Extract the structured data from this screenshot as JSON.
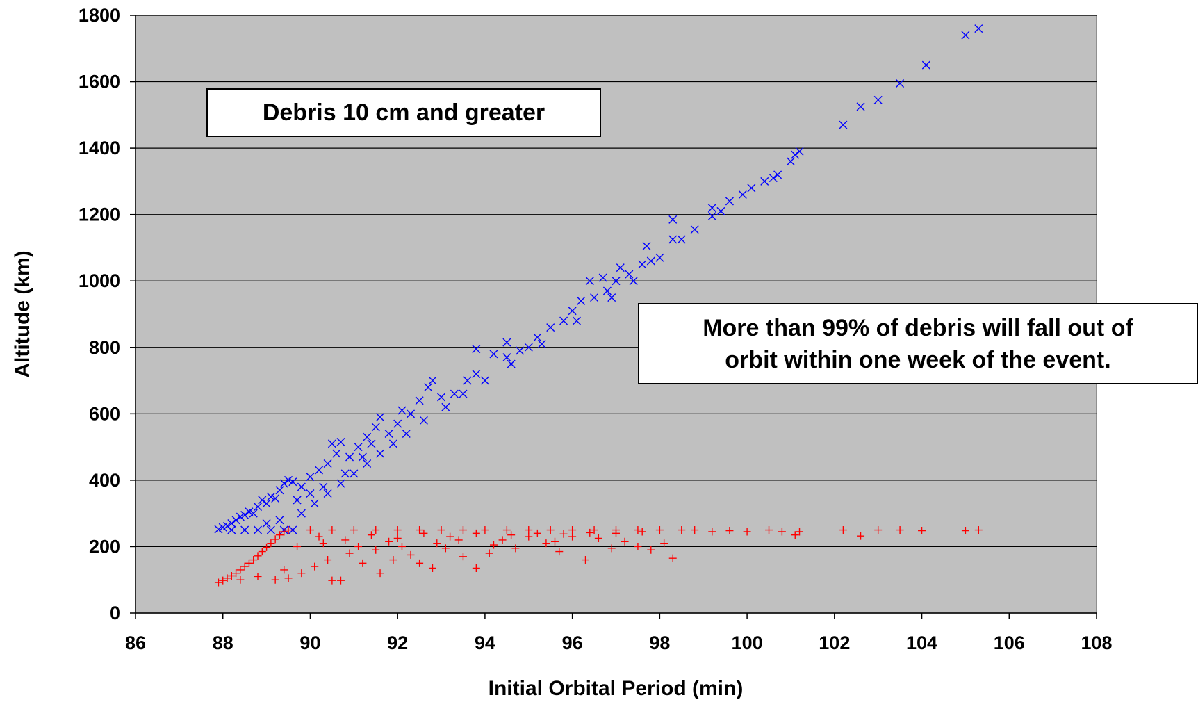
{
  "chart_data": {
    "type": "scatter",
    "xlabel": "Initial Orbital Period  (min)",
    "ylabel": "Altitude  (km)",
    "xlim": [
      86,
      108
    ],
    "ylim": [
      0,
      1800
    ],
    "x_ticks": [
      "86",
      "88",
      "90",
      "92",
      "94",
      "96",
      "98",
      "100",
      "102",
      "104",
      "106",
      "108"
    ],
    "y_ticks": [
      "0",
      "200",
      "400",
      "600",
      "800",
      "1000",
      "1200",
      "1400",
      "1600",
      "1800"
    ],
    "grid": "horizontal",
    "plot_background": "#c0c0c0",
    "annotations": [
      "Debris 10 cm and greater",
      "More than 99% of debris will fall out of orbit within one week of the event."
    ],
    "series": [
      {
        "marker": "x",
        "color": "#0000ff",
        "points": [
          [
            87.9,
            252
          ],
          [
            88.0,
            258
          ],
          [
            88.1,
            262
          ],
          [
            88.2,
            270
          ],
          [
            88.3,
            280
          ],
          [
            88.4,
            290
          ],
          [
            88.5,
            295
          ],
          [
            88.6,
            305
          ],
          [
            88.7,
            300
          ],
          [
            88.8,
            320
          ],
          [
            88.9,
            340
          ],
          [
            89.0,
            330
          ],
          [
            89.1,
            350
          ],
          [
            89.2,
            345
          ],
          [
            89.3,
            370
          ],
          [
            89.4,
            390
          ],
          [
            89.5,
            400
          ],
          [
            89.6,
            395
          ],
          [
            89.8,
            380
          ],
          [
            90.0,
            410
          ],
          [
            90.2,
            430
          ],
          [
            90.4,
            450
          ],
          [
            90.6,
            480
          ],
          [
            90.5,
            510
          ],
          [
            90.7,
            515
          ],
          [
            90.9,
            470
          ],
          [
            91.1,
            500
          ],
          [
            91.3,
            530
          ],
          [
            91.5,
            560
          ],
          [
            91.6,
            590
          ],
          [
            91.8,
            540
          ],
          [
            92.0,
            570
          ],
          [
            92.1,
            610
          ],
          [
            92.3,
            600
          ],
          [
            92.5,
            640
          ],
          [
            92.7,
            680
          ],
          [
            92.8,
            700
          ],
          [
            93.0,
            650
          ],
          [
            93.3,
            660
          ],
          [
            93.6,
            700
          ],
          [
            93.8,
            720
          ],
          [
            93.8,
            795
          ],
          [
            94.2,
            780
          ],
          [
            94.5,
            770
          ],
          [
            94.5,
            815
          ],
          [
            94.8,
            790
          ],
          [
            95.0,
            800
          ],
          [
            95.2,
            830
          ],
          [
            95.5,
            860
          ],
          [
            95.8,
            880
          ],
          [
            96.0,
            910
          ],
          [
            96.2,
            940
          ],
          [
            96.5,
            950
          ],
          [
            96.4,
            1000
          ],
          [
            96.8,
            970
          ],
          [
            96.7,
            1010
          ],
          [
            97.0,
            1000
          ],
          [
            97.1,
            1040
          ],
          [
            97.3,
            1020
          ],
          [
            97.6,
            1050
          ],
          [
            97.7,
            1105
          ],
          [
            97.8,
            1060
          ],
          [
            98.0,
            1070
          ],
          [
            98.3,
            1125
          ],
          [
            98.3,
            1185
          ],
          [
            98.5,
            1125
          ],
          [
            98.8,
            1155
          ],
          [
            99.2,
            1195
          ],
          [
            99.2,
            1220
          ],
          [
            99.4,
            1210
          ],
          [
            99.6,
            1240
          ],
          [
            99.9,
            1260
          ],
          [
            100.1,
            1280
          ],
          [
            100.4,
            1300
          ],
          [
            100.6,
            1310
          ],
          [
            100.7,
            1320
          ],
          [
            101.0,
            1360
          ],
          [
            101.1,
            1380
          ],
          [
            101.2,
            1390
          ],
          [
            102.2,
            1470
          ],
          [
            102.6,
            1525
          ],
          [
            103.0,
            1545
          ],
          [
            103.5,
            1595
          ],
          [
            104.1,
            1650
          ],
          [
            105.0,
            1740
          ],
          [
            105.3,
            1760
          ],
          [
            88.2,
            250
          ],
          [
            88.5,
            250
          ],
          [
            88.8,
            250
          ],
          [
            89.1,
            250
          ],
          [
            89.4,
            250
          ],
          [
            89.6,
            250
          ],
          [
            89.0,
            270
          ],
          [
            89.3,
            280
          ],
          [
            89.8,
            300
          ],
          [
            90.1,
            330
          ],
          [
            90.4,
            360
          ],
          [
            90.7,
            390
          ],
          [
            91.0,
            420
          ],
          [
            91.3,
            450
          ],
          [
            91.6,
            480
          ],
          [
            91.9,
            510
          ],
          [
            92.2,
            540
          ],
          [
            92.6,
            580
          ],
          [
            93.1,
            620
          ],
          [
            93.5,
            660
          ],
          [
            94.0,
            700
          ],
          [
            94.6,
            750
          ],
          [
            95.3,
            810
          ],
          [
            96.1,
            880
          ],
          [
            96.9,
            950
          ],
          [
            97.4,
            1000
          ],
          [
            90.0,
            360
          ],
          [
            89.7,
            340
          ],
          [
            90.3,
            380
          ],
          [
            90.8,
            420
          ],
          [
            91.2,
            470
          ],
          [
            91.4,
            510
          ]
        ]
      },
      {
        "marker": "+",
        "color": "#ff0000",
        "points": [
          [
            87.9,
            92
          ],
          [
            88.0,
            98
          ],
          [
            88.1,
            105
          ],
          [
            88.2,
            112
          ],
          [
            88.3,
            120
          ],
          [
            88.4,
            130
          ],
          [
            88.5,
            140
          ],
          [
            88.6,
            150
          ],
          [
            88.7,
            160
          ],
          [
            88.8,
            172
          ],
          [
            88.9,
            185
          ],
          [
            89.0,
            198
          ],
          [
            89.1,
            210
          ],
          [
            89.2,
            222
          ],
          [
            89.3,
            235
          ],
          [
            89.4,
            245
          ],
          [
            89.5,
            250
          ],
          [
            88.4,
            100
          ],
          [
            88.8,
            110
          ],
          [
            89.2,
            100
          ],
          [
            89.5,
            105
          ],
          [
            89.4,
            130
          ],
          [
            89.8,
            120
          ],
          [
            90.1,
            140
          ],
          [
            90.4,
            160
          ],
          [
            90.5,
            98
          ],
          [
            90.7,
            98
          ],
          [
            90.9,
            180
          ],
          [
            91.2,
            150
          ],
          [
            91.5,
            190
          ],
          [
            91.6,
            120
          ],
          [
            91.9,
            160
          ],
          [
            92.1,
            200
          ],
          [
            92.3,
            175
          ],
          [
            92.5,
            150
          ],
          [
            92.8,
            135
          ],
          [
            93.1,
            195
          ],
          [
            93.5,
            170
          ],
          [
            93.8,
            135
          ],
          [
            94.1,
            180
          ],
          [
            94.4,
            220
          ],
          [
            94.7,
            195
          ],
          [
            95.0,
            230
          ],
          [
            95.4,
            210
          ],
          [
            95.7,
            185
          ],
          [
            96.0,
            230
          ],
          [
            96.3,
            160
          ],
          [
            96.6,
            225
          ],
          [
            96.9,
            195
          ],
          [
            97.2,
            215
          ],
          [
            97.5,
            200
          ],
          [
            97.8,
            190
          ],
          [
            98.1,
            210
          ],
          [
            98.3,
            165
          ],
          [
            90.0,
            250
          ],
          [
            90.5,
            250
          ],
          [
            91.0,
            250
          ],
          [
            91.5,
            250
          ],
          [
            92.0,
            250
          ],
          [
            92.5,
            250
          ],
          [
            93.0,
            250
          ],
          [
            93.5,
            250
          ],
          [
            94.0,
            250
          ],
          [
            94.5,
            250
          ],
          [
            95.0,
            250
          ],
          [
            95.5,
            250
          ],
          [
            96.0,
            250
          ],
          [
            96.5,
            250
          ],
          [
            97.0,
            250
          ],
          [
            97.5,
            250
          ],
          [
            98.0,
            250
          ],
          [
            98.5,
            250
          ],
          [
            98.8,
            250
          ],
          [
            99.2,
            245
          ],
          [
            99.6,
            248
          ],
          [
            100.0,
            245
          ],
          [
            100.5,
            250
          ],
          [
            100.8,
            245
          ],
          [
            101.1,
            235
          ],
          [
            101.2,
            245
          ],
          [
            102.2,
            250
          ],
          [
            102.6,
            232
          ],
          [
            103.0,
            250
          ],
          [
            103.5,
            250
          ],
          [
            104.0,
            248
          ],
          [
            105.0,
            248
          ],
          [
            105.3,
            250
          ],
          [
            90.2,
            230
          ],
          [
            90.8,
            220
          ],
          [
            91.4,
            235
          ],
          [
            92.0,
            225
          ],
          [
            92.6,
            240
          ],
          [
            93.2,
            230
          ],
          [
            93.8,
            240
          ],
          [
            94.6,
            235
          ],
          [
            95.2,
            240
          ],
          [
            95.8,
            238
          ],
          [
            96.4,
            242
          ],
          [
            97.0,
            240
          ],
          [
            97.6,
            245
          ],
          [
            89.7,
            200
          ],
          [
            90.3,
            210
          ],
          [
            91.1,
            200
          ],
          [
            91.8,
            215
          ],
          [
            92.9,
            210
          ],
          [
            93.4,
            220
          ],
          [
            94.2,
            205
          ],
          [
            95.6,
            215
          ]
        ]
      }
    ]
  }
}
